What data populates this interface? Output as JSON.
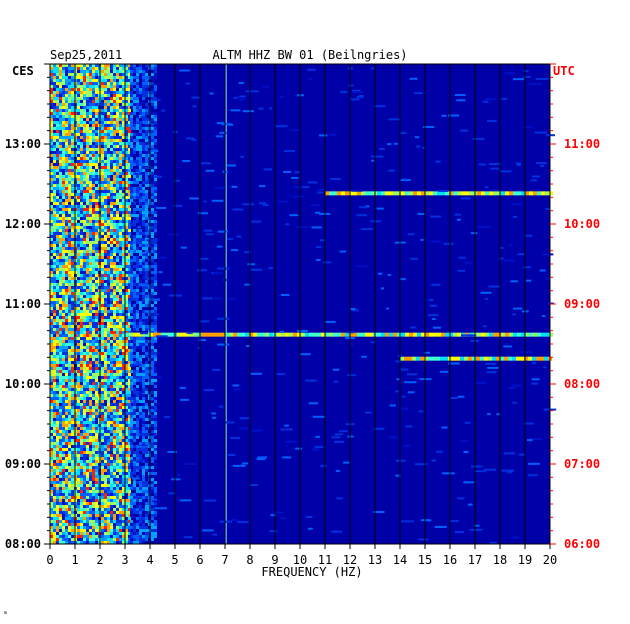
{
  "header": {
    "date": "Sep25,2011",
    "station": "ALTM HHZ BW 01 (Beilngries)"
  },
  "footer": {
    "mark": "ₘ"
  },
  "colors": {
    "background_field": "#0000a8",
    "left_axis": "#000000",
    "right_axis": "#ff0000",
    "gridline": "#000000"
  },
  "chart_data": {
    "type": "heatmap",
    "title": "ALTM HHZ BW 01 (Beilngries)",
    "subtitle": "Sep25,2011",
    "xlabel": "FREQUENCY (HZ)",
    "xlim": [
      0,
      20
    ],
    "x_ticks": [
      "0",
      "1",
      "2",
      "3",
      "4",
      "5",
      "6",
      "7",
      "8",
      "9",
      "10",
      "11",
      "12",
      "13",
      "14",
      "15",
      "16",
      "17",
      "18",
      "19",
      "20"
    ],
    "y_axis_left": {
      "label": "CES",
      "range": [
        "08:00",
        "14:00"
      ],
      "ticks": [
        "13:00",
        "12:00",
        "11:00",
        "10:00",
        "09:00",
        "08:00"
      ]
    },
    "y_axis_right": {
      "label": "UTC",
      "range": [
        "06:00",
        "12:00"
      ],
      "ticks": [
        "11:00",
        "10:00",
        "09:00",
        "08:00",
        "07:00",
        "06:00"
      ]
    },
    "grid": true,
    "features": [
      {
        "kind": "broadband_energy",
        "freq_range_hz": [
          0,
          3.2
        ],
        "time_range_ces": [
          "08:00",
          "14:00"
        ],
        "intensity": "high"
      },
      {
        "kind": "moderate_energy",
        "freq_range_hz": [
          3.2,
          4.2
        ],
        "time_range_ces": [
          "08:00",
          "14:00"
        ],
        "intensity": "medium"
      },
      {
        "kind": "narrow_line",
        "freq_hz": 7.05,
        "time_range_ces": [
          "08:00",
          "14:00"
        ],
        "intensity": "medium"
      },
      {
        "kind": "horizontal_band",
        "time_ces": "12:23",
        "freq_range_hz": [
          11,
          20
        ],
        "intensity": "high"
      },
      {
        "kind": "horizontal_band",
        "time_ces": "10:37",
        "freq_range_hz": [
          3,
          20
        ],
        "intensity": "high"
      },
      {
        "kind": "horizontal_band",
        "time_ces": "10:19",
        "freq_range_hz": [
          14,
          20
        ],
        "intensity": "high"
      }
    ]
  }
}
